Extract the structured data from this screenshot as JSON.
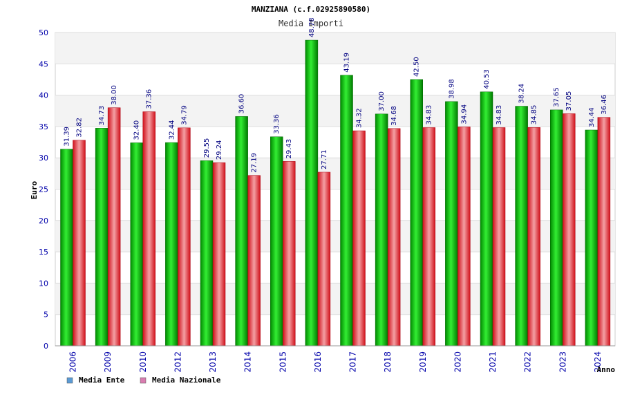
{
  "chart_data": {
    "type": "bar",
    "title": "MANZIANA (c.f.02925890580)",
    "subtitle": "Media Importi",
    "xlabel": "Anno",
    "ylabel": "Euro",
    "ylim": [
      0,
      50
    ],
    "yticks": [
      0,
      5,
      10,
      15,
      20,
      25,
      30,
      35,
      40,
      45,
      50
    ],
    "grid": true,
    "legend_position": "bottom-left",
    "categories": [
      "2006",
      "2009",
      "2010",
      "2012",
      "2013",
      "2014",
      "2015",
      "2016",
      "2017",
      "2018",
      "2019",
      "2020",
      "2021",
      "2022",
      "2023",
      "2024"
    ],
    "series": [
      {
        "name": "Media Ente",
        "color": "#00aa00",
        "legend_color": "#5b9bd5",
        "values": [
          31.39,
          34.73,
          32.4,
          32.44,
          29.55,
          36.6,
          33.36,
          48.78,
          43.19,
          37.0,
          42.5,
          38.98,
          40.53,
          38.24,
          37.65,
          34.44
        ],
        "labels": [
          "31.39",
          "34.73",
          "32.40",
          "32.44",
          "29.55",
          "36.60",
          "33.36",
          "48.78",
          "43.19",
          "37.00",
          "42.50",
          "38.98",
          "40.53",
          "38.24",
          "37.65",
          "34.44"
        ]
      },
      {
        "name": "Media Nazionale",
        "color": "#e8202a",
        "legend_color": "#d97db0",
        "values": [
          32.82,
          38.0,
          37.36,
          34.79,
          29.24,
          27.19,
          29.43,
          27.71,
          34.32,
          34.68,
          34.83,
          34.94,
          34.83,
          34.85,
          37.05,
          36.46
        ],
        "labels": [
          "32.82",
          "38.00",
          "37.36",
          "34.79",
          "29.24",
          "27.19",
          "29.43",
          "27.71",
          "34.32",
          "34.68",
          "34.83",
          "34.94",
          "34.83",
          "34.85",
          "37.05",
          "36.46"
        ]
      }
    ]
  }
}
